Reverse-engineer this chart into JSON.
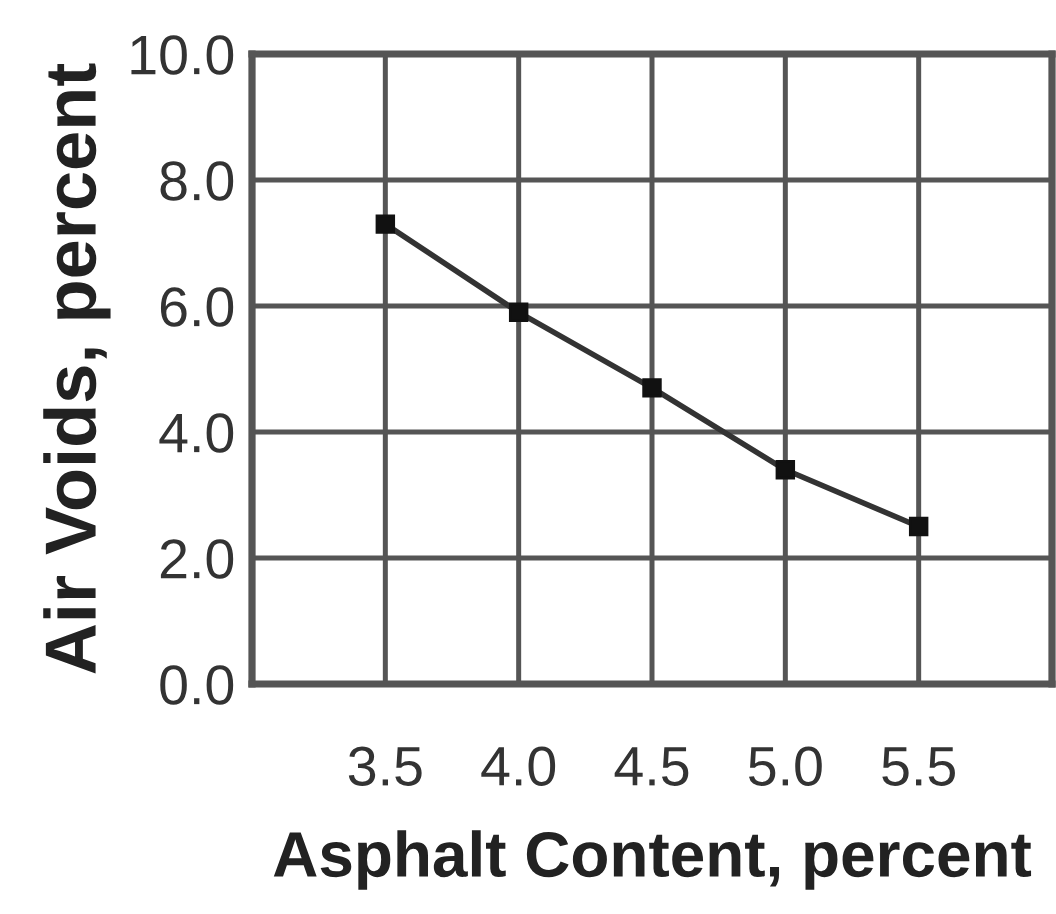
{
  "chart_data": {
    "type": "line",
    "xlabel": "Asphalt Content, percent",
    "ylabel": "Air Voids, percent",
    "x": [
      3.5,
      4.0,
      4.5,
      5.0,
      5.5
    ],
    "values": [
      7.3,
      5.9,
      4.7,
      3.4,
      2.5
    ],
    "color": "#333333",
    "xlim": [
      3.0,
      6.0
    ],
    "xticks": [
      3.5,
      {
        "value": 4.0,
        "label": "4.0"
      },
      4.5,
      {
        "value": 5.0,
        "label": "5.0"
      },
      5.5
    ],
    "ylim": [
      0,
      10
    ],
    "yticks": [
      {
        "value": 0,
        "label": "0.0"
      },
      {
        "value": 2,
        "label": "2.0"
      },
      {
        "value": 4,
        "label": "4.0"
      },
      {
        "value": 6,
        "label": "6.0"
      },
      {
        "value": 8,
        "label": "8.0"
      },
      {
        "value": 10,
        "label": "10.0"
      }
    ],
    "grid": true,
    "marker": "square",
    "line_style": "solid"
  }
}
